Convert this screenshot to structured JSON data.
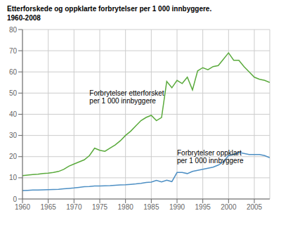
{
  "chart_data": {
    "type": "line",
    "title": "Etterforskede og oppklarte forbrytelser per 1 000 innbyggere.",
    "subtitle": "1960-2008",
    "x": [
      1960,
      1961,
      1962,
      1963,
      1964,
      1965,
      1966,
      1967,
      1968,
      1969,
      1970,
      1971,
      1972,
      1973,
      1974,
      1975,
      1976,
      1977,
      1978,
      1979,
      1980,
      1981,
      1982,
      1983,
      1984,
      1985,
      1986,
      1987,
      1988,
      1989,
      1990,
      1991,
      1992,
      1993,
      1994,
      1995,
      1996,
      1997,
      1998,
      1999,
      2000,
      2001,
      2002,
      2003,
      2004,
      2005,
      2006,
      2007,
      2008
    ],
    "series": [
      {
        "color": "#5aaa3c",
        "values": [
          11.0,
          11.3,
          11.5,
          11.7,
          12.0,
          12.2,
          12.5,
          13.0,
          14.0,
          15.5,
          16.5,
          17.5,
          18.5,
          20.5,
          24.0,
          23.0,
          22.5,
          24.0,
          25.5,
          27.5,
          30.0,
          32.0,
          34.5,
          37.0,
          38.5,
          39.5,
          37.0,
          38.5,
          55.5,
          52.5,
          56.0,
          54.5,
          57.5,
          51.5,
          60.5,
          62.0,
          61.0,
          62.5,
          63.0,
          66.0,
          69.0,
          65.5,
          65.5,
          62.5,
          60.0,
          57.5,
          56.5,
          56.0,
          55.0
        ]
      },
      {
        "color": "#4d8fc4",
        "values": [
          4.0,
          4.1,
          4.2,
          4.2,
          4.3,
          4.4,
          4.5,
          4.6,
          4.8,
          5.0,
          5.2,
          5.5,
          5.8,
          5.9,
          6.1,
          6.1,
          6.2,
          6.3,
          6.5,
          6.6,
          6.7,
          6.9,
          7.1,
          7.4,
          7.8,
          8.0,
          8.8,
          8.1,
          8.9,
          8.2,
          12.5,
          12.5,
          12.0,
          13.0,
          13.5,
          14.0,
          14.5,
          15.0,
          16.0,
          17.5,
          20.5,
          21.0,
          22.0,
          21.5,
          21.0,
          21.0,
          21.0,
          20.5,
          19.5
        ]
      }
    ],
    "annotations": [
      {
        "text": "Forbrytelser etterforsket\nper 1 000 innbyggere",
        "x": 1973,
        "y": 44
      },
      {
        "text": "Forbrytelser oppklart\nper 1 000 innbyggere",
        "x": 1990,
        "y": 16
      }
    ],
    "xlim": [
      1960,
      2008
    ],
    "xticks": [
      1960,
      1965,
      1970,
      1975,
      1980,
      1985,
      1990,
      1995,
      2000,
      2005
    ],
    "ylim": [
      0,
      80
    ],
    "yticks": [
      0,
      10,
      20,
      30,
      40,
      50,
      60,
      70,
      80
    ],
    "grid": true
  }
}
